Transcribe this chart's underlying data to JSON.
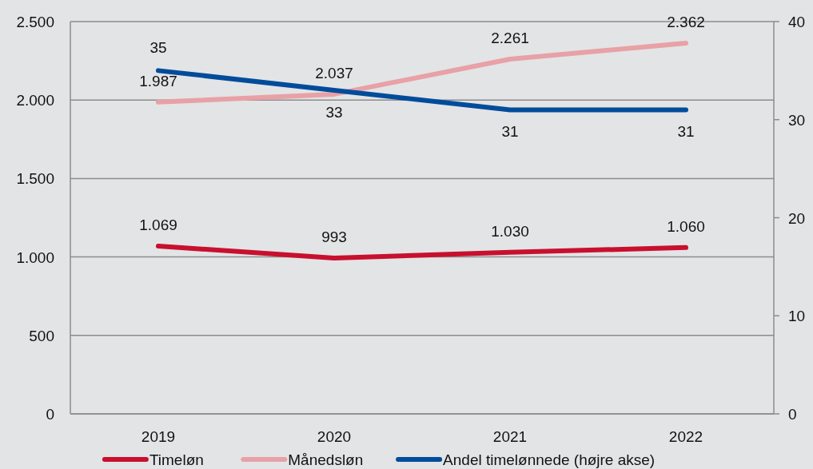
{
  "chart_data": {
    "type": "line",
    "categories": [
      "2019",
      "2020",
      "2021",
      "2022"
    ],
    "series": [
      {
        "name": "Timeløn",
        "color": "#c8102e",
        "values": [
          1069,
          993,
          1030,
          1060
        ],
        "value_labels": [
          "1.069",
          "993",
          "1.030",
          "1.060"
        ]
      },
      {
        "name": "Månedsløn",
        "color": "#e8a1a6",
        "values": [
          1987,
          2037,
          2261,
          2362
        ],
        "value_labels": [
          "1.987",
          "2.037",
          "2.261",
          "2.362"
        ]
      },
      {
        "name": "Andel timelønnede (højre akse)",
        "color": "#004c9b",
        "values": [
          35,
          33,
          31,
          31
        ],
        "value_labels": [
          "35",
          "33",
          "31",
          "31"
        ],
        "axis": "y2"
      }
    ],
    "ylim": [
      0,
      2500
    ],
    "yticks": [
      {
        "value": 0,
        "label": "0"
      },
      {
        "value": 500,
        "label": "500"
      },
      {
        "value": 1000,
        "label": "1.000"
      },
      {
        "value": 1500,
        "label": "1.500"
      },
      {
        "value": 2000,
        "label": "2.000"
      },
      {
        "value": 2500,
        "label": "2.500"
      }
    ],
    "y2lim": [
      0,
      40
    ],
    "y2ticks": [
      0,
      10,
      20,
      30,
      40
    ],
    "grid": "y",
    "legend": "bottom",
    "marker": "none",
    "line_style": "solid"
  }
}
